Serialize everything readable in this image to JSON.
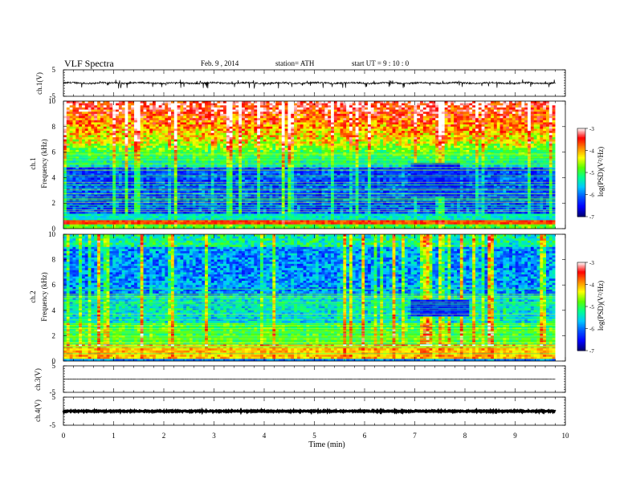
{
  "header": {
    "title": "VLF  Spectra",
    "date": "Feb. 9  , 2014",
    "station": "station= ATH",
    "start": "start  UT  =   9  : 10 : 0"
  },
  "chart_data": [
    {
      "type": "line",
      "panel": "ch1-waveform",
      "ylabel": "ch.1(V)",
      "ylim": [
        -5,
        5
      ],
      "yticks": [
        "5",
        "-5"
      ],
      "baseline": 0,
      "description_values": "noisy waveform near 0 V with negative spikes down to about -1.5 V",
      "xlim": [
        0,
        9.8
      ]
    },
    {
      "type": "heatmap",
      "panel": "ch1-spectrogram",
      "ylabel_top": "ch.1",
      "ylabel": "Frequency  (kHz)",
      "ylim": [
        0,
        10
      ],
      "yticks": [
        "0",
        "2",
        "4",
        "6",
        "8",
        "10"
      ],
      "xlim": [
        0,
        9.8
      ],
      "colorbar": {
        "label": "log(PSD)(V²/Hz)",
        "ticks": [
          "-3",
          "-4",
          "-5",
          "-6",
          "-7"
        ],
        "range": [
          -7,
          -3
        ]
      },
      "features": {
        "low_band_kHz": [
          0.3,
          0.7
        ],
        "high_band_kHz": [
          6.5,
          10
        ],
        "quiet_patch": {
          "t_min": [
            6.9,
            7.9
          ],
          "f_kHz": [
            2.5,
            5.2
          ]
        }
      }
    },
    {
      "type": "heatmap",
      "panel": "ch2-spectrogram",
      "ylabel_top": "ch.2",
      "ylabel": "Frequency  (kHz)",
      "ylim": [
        0,
        10
      ],
      "yticks": [
        "0",
        "2",
        "4",
        "6",
        "8",
        "10"
      ],
      "xlim": [
        0,
        9.8
      ],
      "colorbar": {
        "label": "log(PSD)(V²/Hz)",
        "ticks": [
          "-3",
          "-4",
          "-5",
          "-6",
          "-7"
        ],
        "range": [
          -7,
          -3
        ]
      },
      "features": {
        "low_band_kHz": [
          0.2,
          1.3
        ],
        "quiet_patch": {
          "t_min": [
            6.9,
            8.1
          ],
          "f_kHz": [
            3.5,
            4.8
          ]
        }
      }
    },
    {
      "type": "line",
      "panel": "ch3-waveform",
      "ylabel": "ch.3(V)",
      "ylim": [
        -5,
        5
      ],
      "yticks": [
        "5",
        "-5"
      ],
      "baseline": 0,
      "xlim": [
        0,
        9.8
      ]
    },
    {
      "type": "line",
      "panel": "ch4-waveform",
      "ylabel": "ch.4(V)",
      "ylim": [
        -5,
        5
      ],
      "yticks": [
        "5",
        "-5"
      ],
      "baseline": 0,
      "xlim": [
        0,
        9.8
      ]
    }
  ],
  "x_axis": {
    "label": "Time  (min)",
    "range": [
      0,
      10
    ],
    "ticks": [
      "0",
      "1",
      "2",
      "3",
      "4",
      "5",
      "6",
      "7",
      "8",
      "9",
      "10"
    ]
  },
  "colormap": [
    "#000070",
    "#0000ff",
    "#0055ff",
    "#00c8ff",
    "#00ff90",
    "#5aff00",
    "#ffff00",
    "#ff8800",
    "#ff0000",
    "#ffffff"
  ]
}
